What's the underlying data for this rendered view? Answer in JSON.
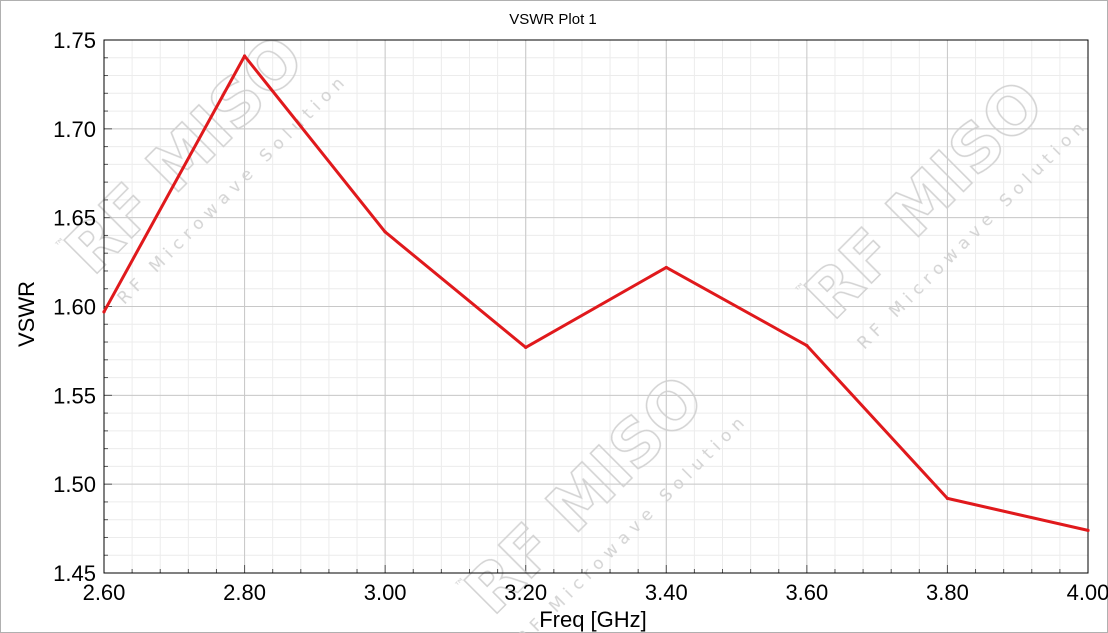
{
  "chart_data": {
    "type": "line",
    "title": "VSWR Plot 1",
    "xlabel": "Freq [GHz]",
    "ylabel": "VSWR",
    "xlim": [
      2.6,
      4.0
    ],
    "ylim": [
      1.45,
      1.75
    ],
    "x_ticks": [
      "2.60",
      "2.80",
      "3.00",
      "3.20",
      "3.40",
      "3.60",
      "3.80",
      "4.00"
    ],
    "y_ticks": [
      "1.45",
      "1.50",
      "1.55",
      "1.60",
      "1.65",
      "1.70",
      "1.75"
    ],
    "grid": true,
    "series": [
      {
        "color": "#e0191c",
        "x": [
          2.6,
          2.8,
          3.0,
          3.2,
          3.4,
          3.6,
          3.8,
          4.0
        ],
        "values": [
          1.597,
          1.741,
          1.642,
          1.577,
          1.622,
          1.578,
          1.492,
          1.474
        ]
      }
    ]
  },
  "watermark": {
    "brand": "RF MISO",
    "tagline": "RF Microwave Solution",
    "mark": "™"
  },
  "colors": {
    "series": "#e0191c",
    "grid_major": "#c8c8c8",
    "grid_minor": "#ececec",
    "axis": "#000000",
    "watermark": "#cfcfcf"
  }
}
